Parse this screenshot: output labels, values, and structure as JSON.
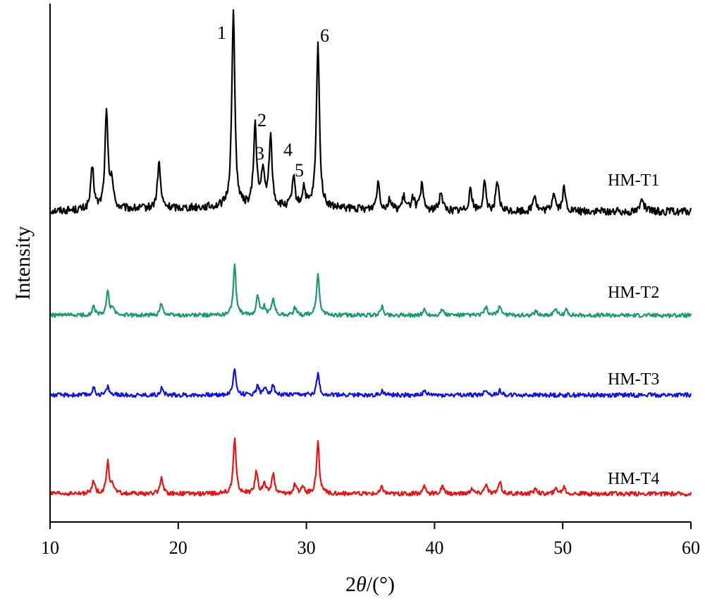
{
  "chart_data": {
    "type": "line",
    "xlabel": "2θ/(°)",
    "xlabel_prefix": "2",
    "xlabel_symbol": "θ",
    "xlabel_suffix": "/(°)",
    "ylabel": "Intensity",
    "xlim": [
      10,
      60
    ],
    "x_ticks": [
      10,
      20,
      30,
      40,
      50,
      60
    ],
    "y_ticks_visible": false,
    "grid": false,
    "legend": "none",
    "series": [
      {
        "name": "HM-T1",
        "color": "#000000",
        "peaks": [
          [
            13.3,
            60
          ],
          [
            14.4,
            135
          ],
          [
            14.8,
            40
          ],
          [
            18.5,
            65
          ],
          [
            24.3,
            280
          ],
          [
            26.0,
            115
          ],
          [
            26.6,
            50
          ],
          [
            27.2,
            100
          ],
          [
            29.0,
            40
          ],
          [
            29.8,
            28
          ],
          [
            30.9,
            235
          ],
          [
            35.6,
            40
          ],
          [
            36.5,
            15
          ],
          [
            37.6,
            18
          ],
          [
            38.3,
            20
          ],
          [
            39.0,
            35
          ],
          [
            40.5,
            28
          ],
          [
            42.8,
            33
          ],
          [
            43.9,
            38
          ],
          [
            44.9,
            40
          ],
          [
            47.8,
            25
          ],
          [
            49.3,
            28
          ],
          [
            50.1,
            32
          ],
          [
            56.2,
            22
          ]
        ]
      },
      {
        "name": "HM-T2",
        "color": "#1a9a6f",
        "peaks": [
          [
            13.4,
            12
          ],
          [
            14.5,
            33
          ],
          [
            14.9,
            10
          ],
          [
            18.7,
            18
          ],
          [
            24.4,
            70
          ],
          [
            26.2,
            28
          ],
          [
            26.7,
            12
          ],
          [
            27.4,
            25
          ],
          [
            29.1,
            10
          ],
          [
            30.9,
            58
          ],
          [
            35.9,
            12
          ],
          [
            39.2,
            8
          ],
          [
            40.6,
            8
          ],
          [
            44.0,
            12
          ],
          [
            45.1,
            14
          ],
          [
            47.9,
            6
          ],
          [
            49.4,
            10
          ],
          [
            50.3,
            8
          ]
        ]
      },
      {
        "name": "HM-T3",
        "color": "#1010ee",
        "peaks": [
          [
            13.4,
            10
          ],
          [
            14.5,
            12
          ],
          [
            18.7,
            10
          ],
          [
            24.4,
            38
          ],
          [
            26.2,
            14
          ],
          [
            26.8,
            10
          ],
          [
            27.4,
            14
          ],
          [
            30.9,
            30
          ],
          [
            35.9,
            6
          ],
          [
            39.2,
            5
          ],
          [
            44.0,
            8
          ],
          [
            45.1,
            7
          ]
        ]
      },
      {
        "name": "HM-T4",
        "color": "#ee1111",
        "peaks": [
          [
            13.4,
            18
          ],
          [
            14.5,
            45
          ],
          [
            14.9,
            12
          ],
          [
            18.7,
            24
          ],
          [
            24.4,
            78
          ],
          [
            26.1,
            32
          ],
          [
            26.7,
            14
          ],
          [
            27.4,
            28
          ],
          [
            29.1,
            12
          ],
          [
            29.7,
            10
          ],
          [
            30.9,
            72
          ],
          [
            35.9,
            10
          ],
          [
            39.2,
            12
          ],
          [
            40.6,
            10
          ],
          [
            42.9,
            8
          ],
          [
            44.0,
            14
          ],
          [
            45.1,
            16
          ],
          [
            47.9,
            8
          ],
          [
            49.5,
            8
          ],
          [
            50.1,
            10
          ]
        ]
      }
    ],
    "annotations": [
      {
        "label": "1",
        "x": 24.3
      },
      {
        "label": "2",
        "x": 26.0
      },
      {
        "label": "3",
        "x": 26.6
      },
      {
        "label": "4",
        "x": 29.0
      },
      {
        "label": "5",
        "x": 29.8
      },
      {
        "label": "6",
        "x": 30.9
      }
    ]
  }
}
